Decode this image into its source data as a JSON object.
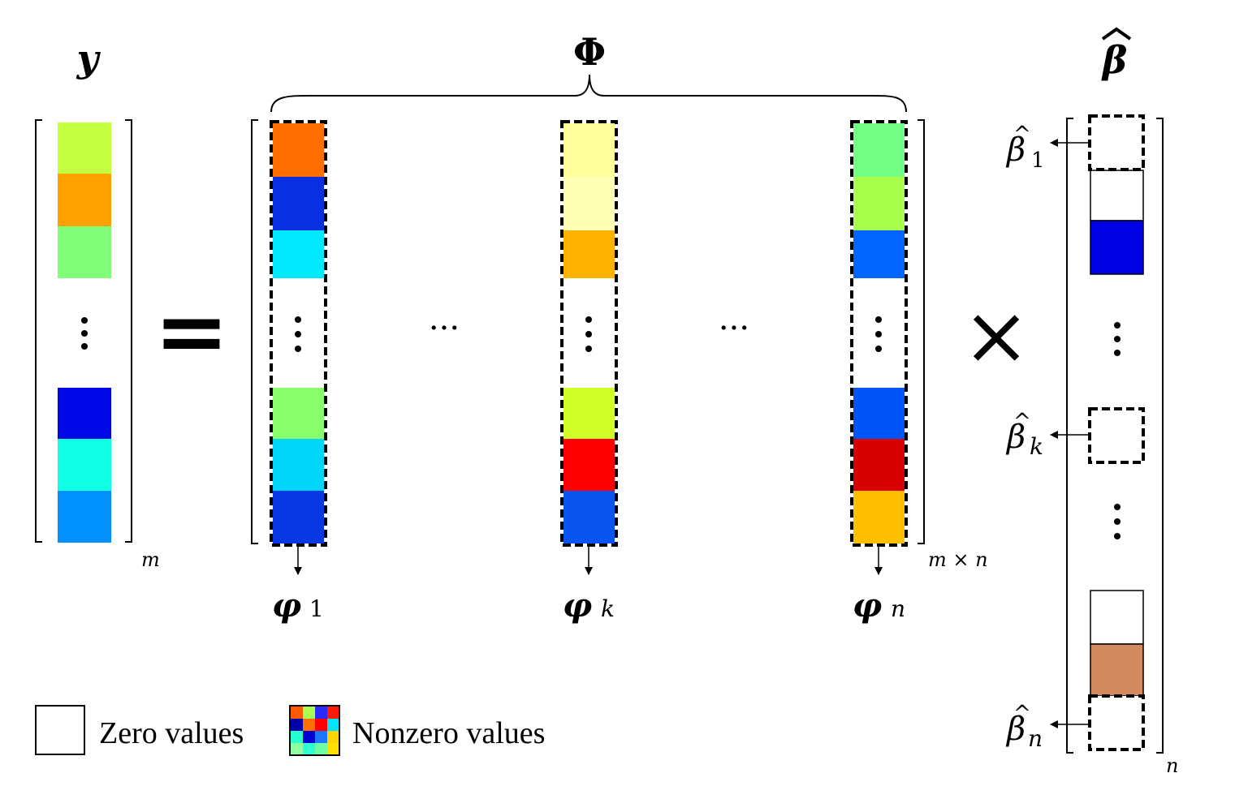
{
  "equation": {
    "y_label": "y",
    "phi_label": "Φ",
    "beta_label": "β",
    "beta_hat_mark": "^",
    "equals": "=",
    "times": "×",
    "ellipsis": "···"
  },
  "dims": {
    "y": "m",
    "phi": "m × n",
    "beta": "n"
  },
  "columns": {
    "phi_symbol": "φ",
    "first_index": "1",
    "mid_index": "k",
    "last_index": "n"
  },
  "beta_entries": {
    "symbol": "β",
    "hat_mark": "^",
    "first_index": "1",
    "mid_index": "k",
    "last_index": "n"
  },
  "colors": {
    "y": [
      "#c4ff40",
      "#ffa200",
      "#82ff78",
      "#0007e6",
      "#10ffe4",
      "#0090ff"
    ],
    "phi1": [
      "#ff6f00",
      "#0a2fe0",
      "#00e9ff",
      "#89ff6c",
      "#00d6fa",
      "#0a37e4"
    ],
    "phik": [
      "#ffff9e",
      "#ffffb6",
      "#ffb100",
      "#d0ff2a",
      "#ff0000",
      "#0a55f0"
    ],
    "phin": [
      "#72ff84",
      "#a7ff4b",
      "#0065ff",
      "#0055f8",
      "#d80000",
      "#ffbf00"
    ],
    "beta_blue": "#0000e4",
    "beta_brown": "#d28b60",
    "legend_mosaic": [
      "#ff5a00",
      "#a8ff4f",
      "#2a2aff",
      "#ff1a00",
      "#0000aa",
      "#ff6f00",
      "#ff0000",
      "#00e4ff",
      "#28ffd0",
      "#0000d0",
      "#1d76ff",
      "#ffd500",
      "#90ffa0",
      "#30ffd4",
      "#70ffa0",
      "#ffe000"
    ]
  },
  "legend": {
    "zero_label": "Zero values",
    "nonzero_label": "Nonzero values"
  }
}
